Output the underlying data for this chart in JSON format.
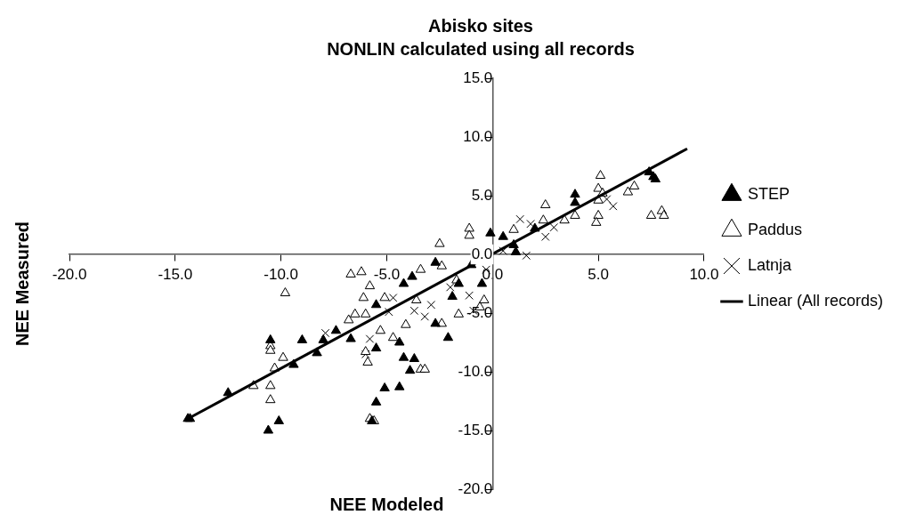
{
  "chart_data": {
    "type": "scatter",
    "title": "Abisko sites",
    "subtitle": "NONLIN calculated using all records",
    "xlabel": "NEE Modeled",
    "ylabel": "NEE Measured",
    "xlim": [
      -20,
      10
    ],
    "ylim": [
      -20,
      15
    ],
    "xticks": [
      {
        "value": -20,
        "label": "-20.0"
      },
      {
        "value": -15,
        "label": "-15.0"
      },
      {
        "value": -10,
        "label": "-10.0"
      },
      {
        "value": -5,
        "label": "-5.0"
      },
      {
        "value": 0,
        "label": "0.0"
      },
      {
        "value": 5,
        "label": "5.0"
      },
      {
        "value": 10,
        "label": "10.0"
      }
    ],
    "yticks": [
      {
        "value": -20,
        "label": "-20.0"
      },
      {
        "value": -15,
        "label": "-15.0"
      },
      {
        "value": -10,
        "label": "-10.0"
      },
      {
        "value": -5,
        "label": "-5.0"
      },
      {
        "value": 0,
        "label": "0.0"
      },
      {
        "value": 5,
        "label": "5.0"
      },
      {
        "value": 10,
        "label": "10.0"
      },
      {
        "value": 15,
        "label": "15.0"
      }
    ],
    "grid": false,
    "legend": "right",
    "series": [
      {
        "name": "STEP",
        "color": "#000000",
        "marker": "triangle",
        "x": [
          -14.4,
          -14.3,
          -12.5,
          -10.5,
          -9.0,
          -9.4,
          -8.0,
          -7.4,
          -6.7,
          -8.3,
          -10.6,
          -10.1,
          -5.5,
          -5.1,
          -4.4,
          -5.7,
          -5.5,
          -5.5,
          -4.4,
          7.6,
          7.4,
          7.7,
          3.9,
          3.9,
          -0.1,
          0.5,
          1.1,
          -2.7,
          -3.8,
          -4.2,
          -2.1,
          -2.7,
          -4.2,
          -3.7,
          -3.9,
          -1.6,
          -0.5,
          -1.0,
          -1.9,
          2.0,
          1.0
        ],
        "values": [
          -14.0,
          -14.0,
          -11.8,
          -7.3,
          -7.3,
          -9.4,
          -7.3,
          -6.5,
          -7.2,
          -8.4,
          -15.0,
          -14.2,
          -12.6,
          -11.4,
          -11.3,
          -14.2,
          -8.0,
          -4.3,
          -7.5,
          6.6,
          7.0,
          6.4,
          5.1,
          4.4,
          1.8,
          1.5,
          0.2,
          -0.7,
          -1.9,
          -2.5,
          -7.1,
          -5.9,
          -8.8,
          -8.9,
          -9.9,
          -2.5,
          -2.5,
          -0.9,
          -3.6,
          2.2,
          0.8
        ]
      },
      {
        "name": "Paddus",
        "color": "#ffffff",
        "marker": "triangle",
        "x": [
          -10.5,
          -10.5,
          -9.9,
          -10.3,
          -11.3,
          -10.5,
          -10.5,
          -9.8,
          -6.7,
          -6.2,
          -5.8,
          -6.1,
          -6.8,
          -6.5,
          -6.0,
          -6.0,
          -5.9,
          -5.8,
          -5.6,
          -5.3,
          -5.1,
          5.1,
          5.0,
          5.2,
          5.0,
          5.0,
          4.9,
          6.4,
          6.7,
          7.5,
          8.0,
          8.1,
          3.9,
          3.4,
          2.5,
          2.4,
          -1.1,
          -1.1,
          -2.5,
          1.0,
          -3.4,
          -2.4,
          -1.7,
          -0.6,
          -0.4,
          -1.6,
          -2.4,
          -4.1,
          -4.7,
          -3.4,
          -3.2,
          -3.6
        ],
        "values": [
          -7.8,
          -8.2,
          -8.8,
          -9.7,
          -11.2,
          -11.2,
          -12.4,
          -3.3,
          -1.7,
          -1.5,
          -2.7,
          -3.7,
          -5.6,
          -5.1,
          -5.1,
          -8.3,
          -9.2,
          -14.0,
          -14.2,
          -6.5,
          -3.7,
          6.7,
          5.6,
          5.2,
          4.6,
          3.3,
          2.7,
          5.3,
          5.8,
          3.3,
          3.7,
          3.3,
          3.3,
          2.9,
          4.2,
          2.9,
          2.2,
          1.6,
          0.9,
          2.1,
          -1.3,
          -1.0,
          -2.2,
          -4.5,
          -3.9,
          -5.1,
          -5.9,
          -6.0,
          -7.1,
          -9.8,
          -9.8,
          -3.9
        ]
      },
      {
        "name": "Latnja",
        "color": "#000000",
        "marker": "cross",
        "x": [
          -7.9,
          -5.8,
          -6.0,
          1.3,
          1.6,
          2.5,
          5.7,
          5.4,
          2.9,
          -3.2,
          -3.7,
          -4.7,
          -1.1,
          -2.0,
          -0.3,
          -4.9,
          -2.9,
          -0.9,
          0.5,
          1.8
        ],
        "values": [
          -6.7,
          -7.2,
          -8.5,
          3.0,
          -0.1,
          1.5,
          4.1,
          4.7,
          2.3,
          -5.3,
          -4.8,
          -3.7,
          -3.5,
          -2.8,
          -1.3,
          -4.9,
          -4.3,
          -4.8,
          0.3,
          2.6
        ]
      },
      {
        "name": "Linear (All records)",
        "type": "line",
        "color": "#000000",
        "marker": "none",
        "line_style": "solid",
        "x": [
          -14.4,
          9.2
        ],
        "values": [
          -14.0,
          9.0
        ]
      }
    ]
  }
}
